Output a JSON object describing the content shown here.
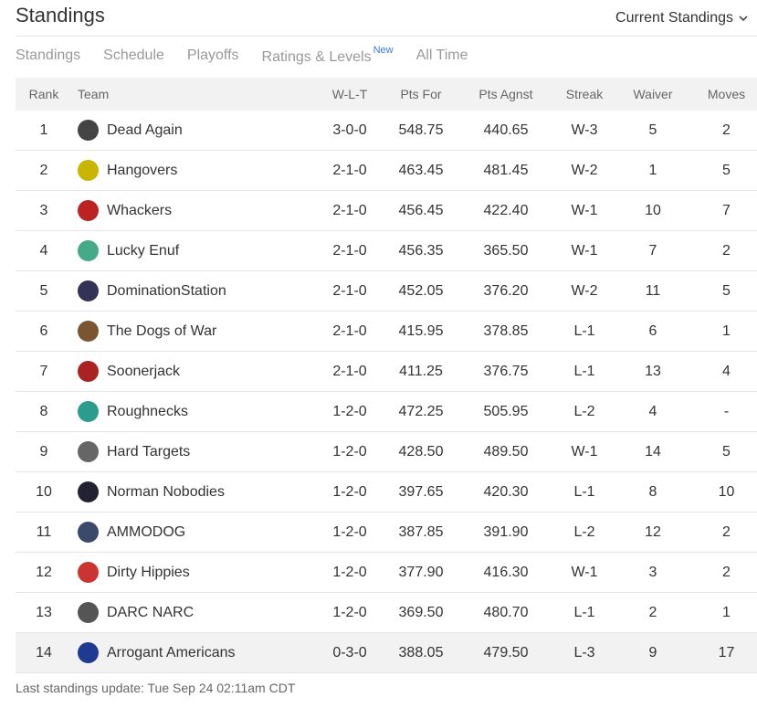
{
  "header": {
    "title": "Standings",
    "dropdown": "Current Standings"
  },
  "tabs": [
    "Standings",
    "Schedule",
    "Playoffs",
    "Ratings & Levels",
    "All Time"
  ],
  "tab_badge": "New",
  "table": {
    "columns": [
      "Rank",
      "Team",
      "W-L-T",
      "Pts For",
      "Pts Agnst",
      "Streak",
      "Waiver",
      "Moves"
    ],
    "rows": [
      [
        "1",
        "Dead Again",
        "3-0-0",
        "548.75",
        "440.65",
        "W-3",
        "5",
        "2"
      ],
      [
        "2",
        "Hangovers",
        "2-1-0",
        "463.45",
        "481.45",
        "W-2",
        "1",
        "5"
      ],
      [
        "3",
        "Whackers",
        "2-1-0",
        "456.45",
        "422.40",
        "W-1",
        "10",
        "7"
      ],
      [
        "4",
        "Lucky Enuf",
        "2-1-0",
        "456.35",
        "365.50",
        "W-1",
        "7",
        "2"
      ],
      [
        "5",
        "DominationStation",
        "2-1-0",
        "452.05",
        "376.20",
        "W-2",
        "11",
        "5"
      ],
      [
        "6",
        "The Dogs of War",
        "2-1-0",
        "415.95",
        "378.85",
        "L-1",
        "6",
        "1"
      ],
      [
        "7",
        "Soonerjack",
        "2-1-0",
        "411.25",
        "376.75",
        "L-1",
        "13",
        "4"
      ],
      [
        "8",
        "Roughnecks",
        "1-2-0",
        "472.25",
        "505.95",
        "L-2",
        "4",
        "-"
      ],
      [
        "9",
        "Hard Targets",
        "1-2-0",
        "428.50",
        "489.50",
        "W-1",
        "14",
        "5"
      ],
      [
        "10",
        "Norman Nobodies",
        "1-2-0",
        "397.65",
        "420.30",
        "L-1",
        "8",
        "10"
      ],
      [
        "11",
        "AMMODOG",
        "1-2-0",
        "387.85",
        "391.90",
        "L-2",
        "12",
        "2"
      ],
      [
        "12",
        "Dirty Hippies",
        "1-2-0",
        "377.90",
        "416.30",
        "W-1",
        "3",
        "2"
      ],
      [
        "13",
        "DARC NARC",
        "1-2-0",
        "369.50",
        "480.70",
        "L-1",
        "2",
        "1"
      ],
      [
        "14",
        "Arrogant Americans",
        "0-3-0",
        "388.05",
        "479.50",
        "L-3",
        "9",
        "17"
      ]
    ]
  },
  "footer": "Last standings update: Tue Sep 24 02:11am CDT"
}
